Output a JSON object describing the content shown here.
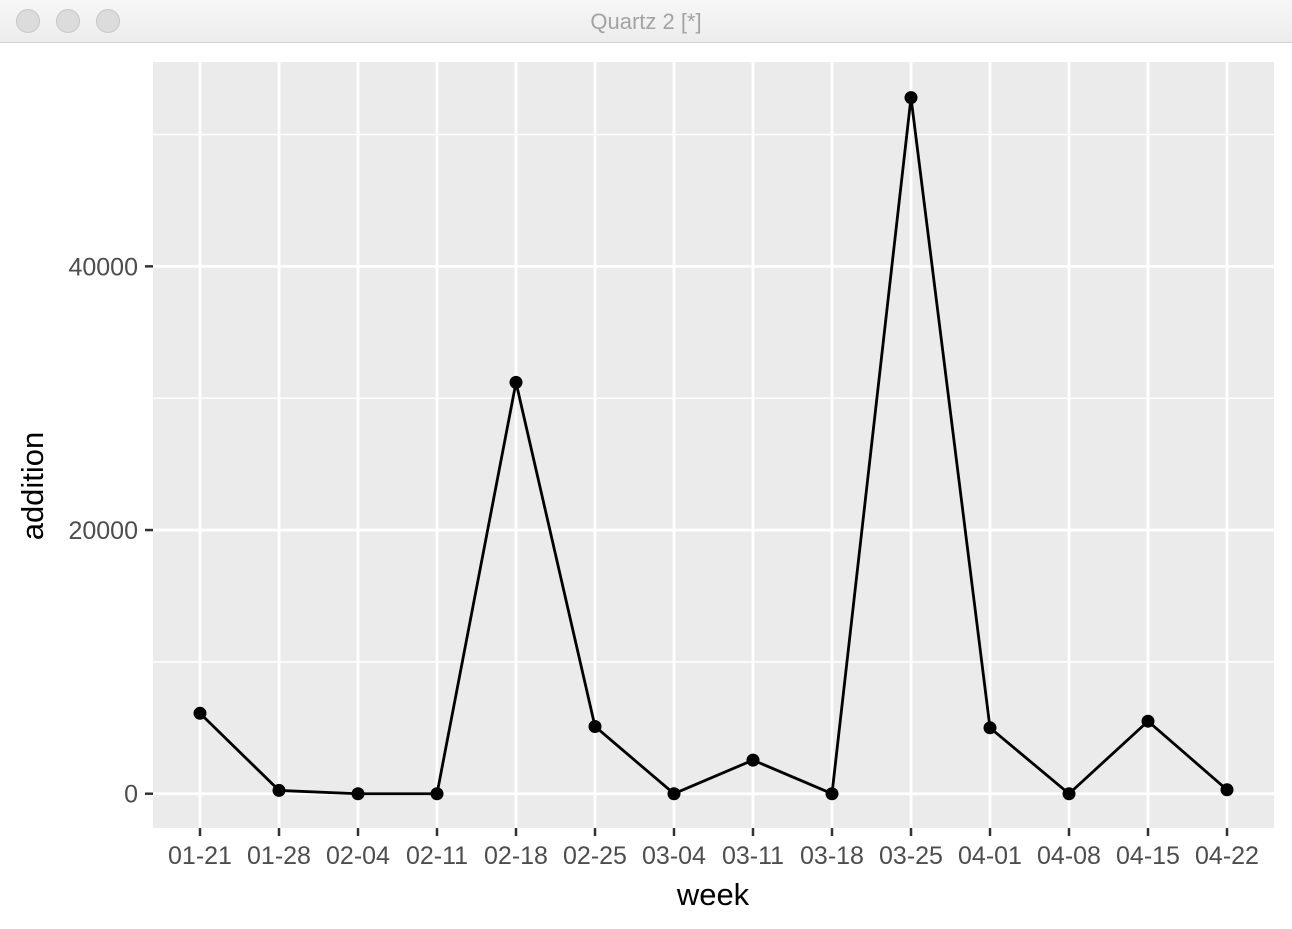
{
  "window": {
    "title": "Quartz 2 [*]"
  },
  "chart_data": {
    "type": "line",
    "title": "",
    "xlabel": "week",
    "ylabel": "addition",
    "categories": [
      "01-21",
      "01-28",
      "02-04",
      "02-11",
      "02-18",
      "02-25",
      "03-04",
      "03-11",
      "03-18",
      "03-25",
      "04-01",
      "04-08",
      "04-15",
      "04-22"
    ],
    "values": [
      6100,
      250,
      0,
      0,
      31200,
      5100,
      0,
      2550,
      0,
      52800,
      5000,
      0,
      5500,
      300
    ],
    "yticks": [
      0,
      20000,
      40000
    ],
    "ylim": [
      -2600,
      55500
    ],
    "grid": true,
    "legend": "none",
    "colors": {
      "panel": "#ebebeb",
      "grid": "#ffffff",
      "line": "#000000",
      "axis_text": "#4d4d4d",
      "axis_title": "#000000"
    }
  }
}
